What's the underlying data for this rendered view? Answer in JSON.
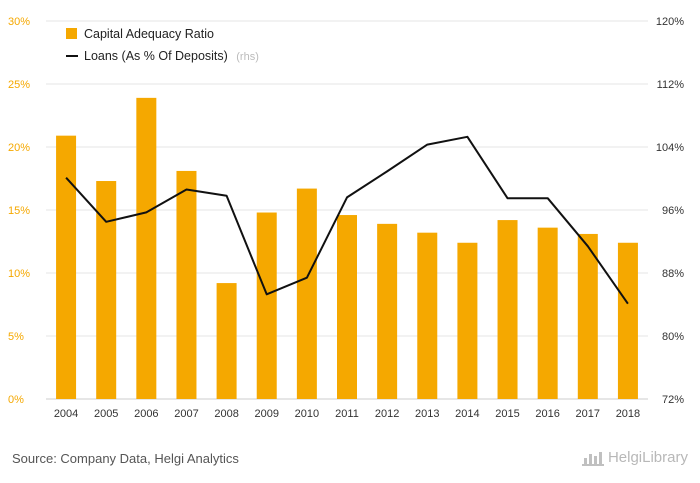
{
  "chart_data": {
    "type": "bar",
    "categories": [
      "2004",
      "2005",
      "2006",
      "2007",
      "2008",
      "2009",
      "2010",
      "2011",
      "2012",
      "2013",
      "2014",
      "2015",
      "2016",
      "2017",
      "2018"
    ],
    "series": [
      {
        "name": "Capital Adequacy Ratio",
        "type": "bar",
        "axis": "left",
        "color": "#f5a800",
        "values": [
          20.9,
          17.3,
          23.9,
          18.1,
          9.2,
          14.8,
          16.7,
          14.6,
          13.9,
          13.2,
          12.4,
          14.2,
          13.6,
          13.1,
          12.4
        ]
      },
      {
        "name": "Loans (As % Of Deposits)",
        "type": "line",
        "axis": "right",
        "color": "#111111",
        "values": [
          100.1,
          94.5,
          95.7,
          98.6,
          97.8,
          85.3,
          87.4,
          97.6,
          100.9,
          104.3,
          105.3,
          97.5,
          97.5,
          91.4,
          84.1
        ]
      }
    ],
    "y_left": {
      "min": 0,
      "max": 30,
      "ticks": [
        "0%",
        "5%",
        "10%",
        "15%",
        "20%",
        "25%",
        "30%"
      ]
    },
    "y_right": {
      "min": 72,
      "max": 120,
      "ticks": [
        "72%",
        "80%",
        "88%",
        "96%",
        "104%",
        "112%",
        "120%"
      ]
    },
    "legend_rhs_note": "(rhs)",
    "legend_position": "top-left",
    "grid": true
  },
  "footer": {
    "source": "Source: Company Data, Helgi Analytics",
    "logo_text": "HelgiLibrary"
  }
}
